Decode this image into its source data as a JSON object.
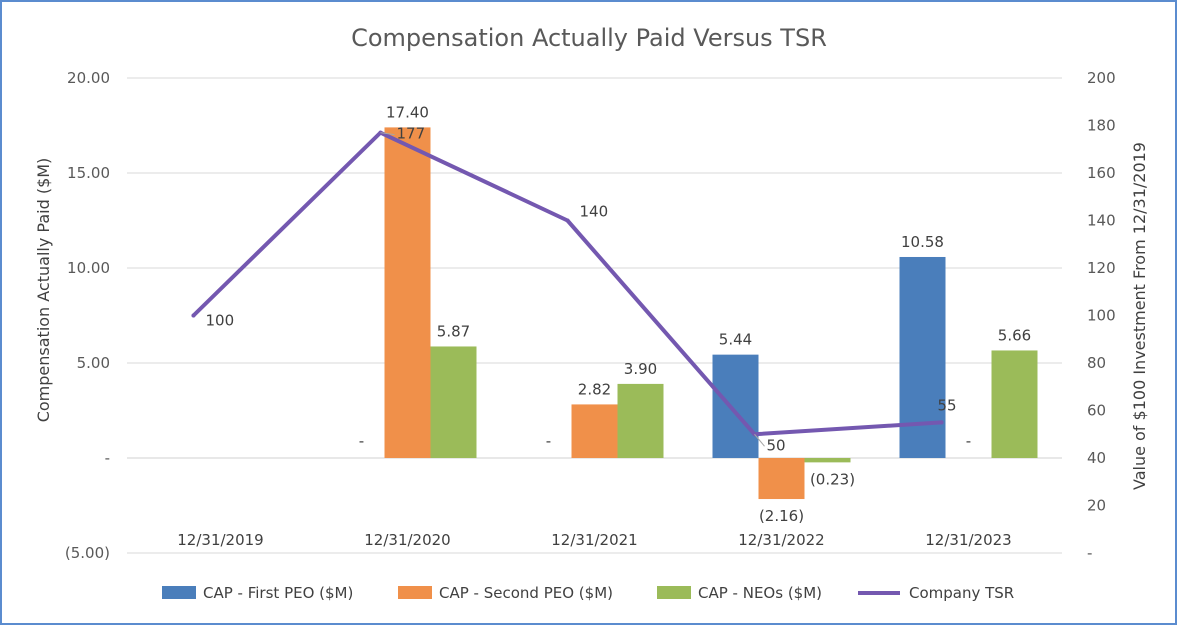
{
  "chart_data": {
    "type": "bar",
    "title": "Compensation Actually Paid Versus TSR",
    "ylabel": "Compensation Actually Paid ($M)",
    "y2label": "Value of $100 Investment From 12/31/2019",
    "ylim": [
      -5,
      20
    ],
    "y2lim": [
      0,
      200
    ],
    "yticks": [
      {
        "value": 20,
        "label": "20.00"
      },
      {
        "value": 15,
        "label": "15.00"
      },
      {
        "value": 10,
        "label": "10.00"
      },
      {
        "value": 5,
        "label": "5.00"
      },
      {
        "value": 0,
        "label": "-"
      },
      {
        "value": -5,
        "label": "(5.00)"
      }
    ],
    "y2ticks": [
      {
        "value": 200,
        "label": "200"
      },
      {
        "value": 180,
        "label": "180"
      },
      {
        "value": 160,
        "label": "160"
      },
      {
        "value": 140,
        "label": "140"
      },
      {
        "value": 120,
        "label": "120"
      },
      {
        "value": 100,
        "label": "100"
      },
      {
        "value": 80,
        "label": "80"
      },
      {
        "value": 60,
        "label": "60"
      },
      {
        "value": 40,
        "label": "40"
      },
      {
        "value": 20,
        "label": "20"
      },
      {
        "value": 0,
        "label": "-"
      }
    ],
    "categories": [
      "12/31/2019",
      "12/31/2020",
      "12/31/2021",
      "12/31/2022",
      "12/31/2023"
    ],
    "series": [
      {
        "name": "CAP - First PEO ($M)",
        "color": "#4a7ebb",
        "values": [
          null,
          0,
          0,
          5.44,
          10.58
        ],
        "labels": [
          "",
          "-",
          "-",
          "5.44",
          "10.58"
        ]
      },
      {
        "name": "CAP - Second PEO ($M)",
        "color": "#f0904a",
        "values": [
          null,
          17.4,
          2.82,
          -2.16,
          0
        ],
        "labels": [
          "",
          "17.40",
          "2.82",
          "(2.16)",
          "-"
        ]
      },
      {
        "name": "CAP - NEOs ($M)",
        "color": "#9bbb59",
        "values": [
          null,
          5.87,
          3.9,
          -0.23,
          5.66
        ],
        "labels": [
          "",
          "5.87",
          "3.90",
          "(0.23)",
          "5.66"
        ]
      }
    ],
    "line": {
      "name": "Company TSR",
      "color": "#7458b0",
      "axis": "secondary",
      "values": [
        100,
        177,
        140,
        50,
        55
      ],
      "labels": [
        "100",
        "177",
        "140",
        "50",
        "55"
      ]
    },
    "legend": "bottom",
    "grid": true
  }
}
